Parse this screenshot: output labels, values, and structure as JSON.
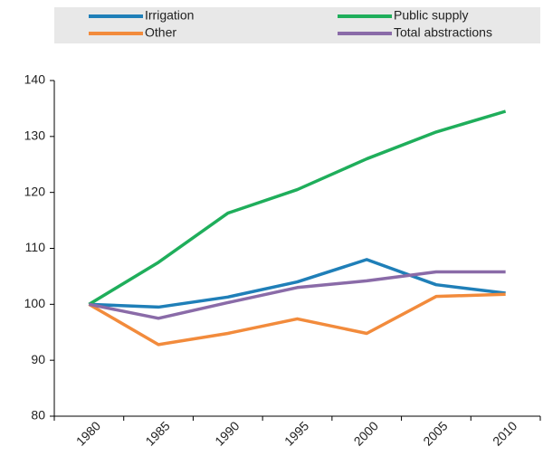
{
  "chart_data": {
    "type": "line",
    "categories": [
      "1980",
      "1985",
      "1990",
      "1995",
      "2000",
      "2005",
      "2010"
    ],
    "series": [
      {
        "name": "Irrigation",
        "color": "#1f7fb8",
        "values": [
          100,
          99.5,
          101.3,
          104,
          108,
          103.5,
          102
        ]
      },
      {
        "name": "Public supply",
        "color": "#1fae5b",
        "values": [
          100,
          107.5,
          116.3,
          120.5,
          126,
          130.8,
          134.5
        ]
      },
      {
        "name": "Other",
        "color": "#f28b3c",
        "values": [
          100,
          92.8,
          94.8,
          97.4,
          94.8,
          101.4,
          101.8
        ]
      },
      {
        "name": "Total abstractions",
        "color": "#8a6ba8",
        "values": [
          100,
          97.5,
          100.3,
          103,
          104.2,
          105.8,
          105.8
        ]
      }
    ],
    "ylim": [
      80,
      140
    ],
    "yticks": [
      80,
      90,
      100,
      110,
      120,
      130,
      140
    ],
    "grid": false
  }
}
